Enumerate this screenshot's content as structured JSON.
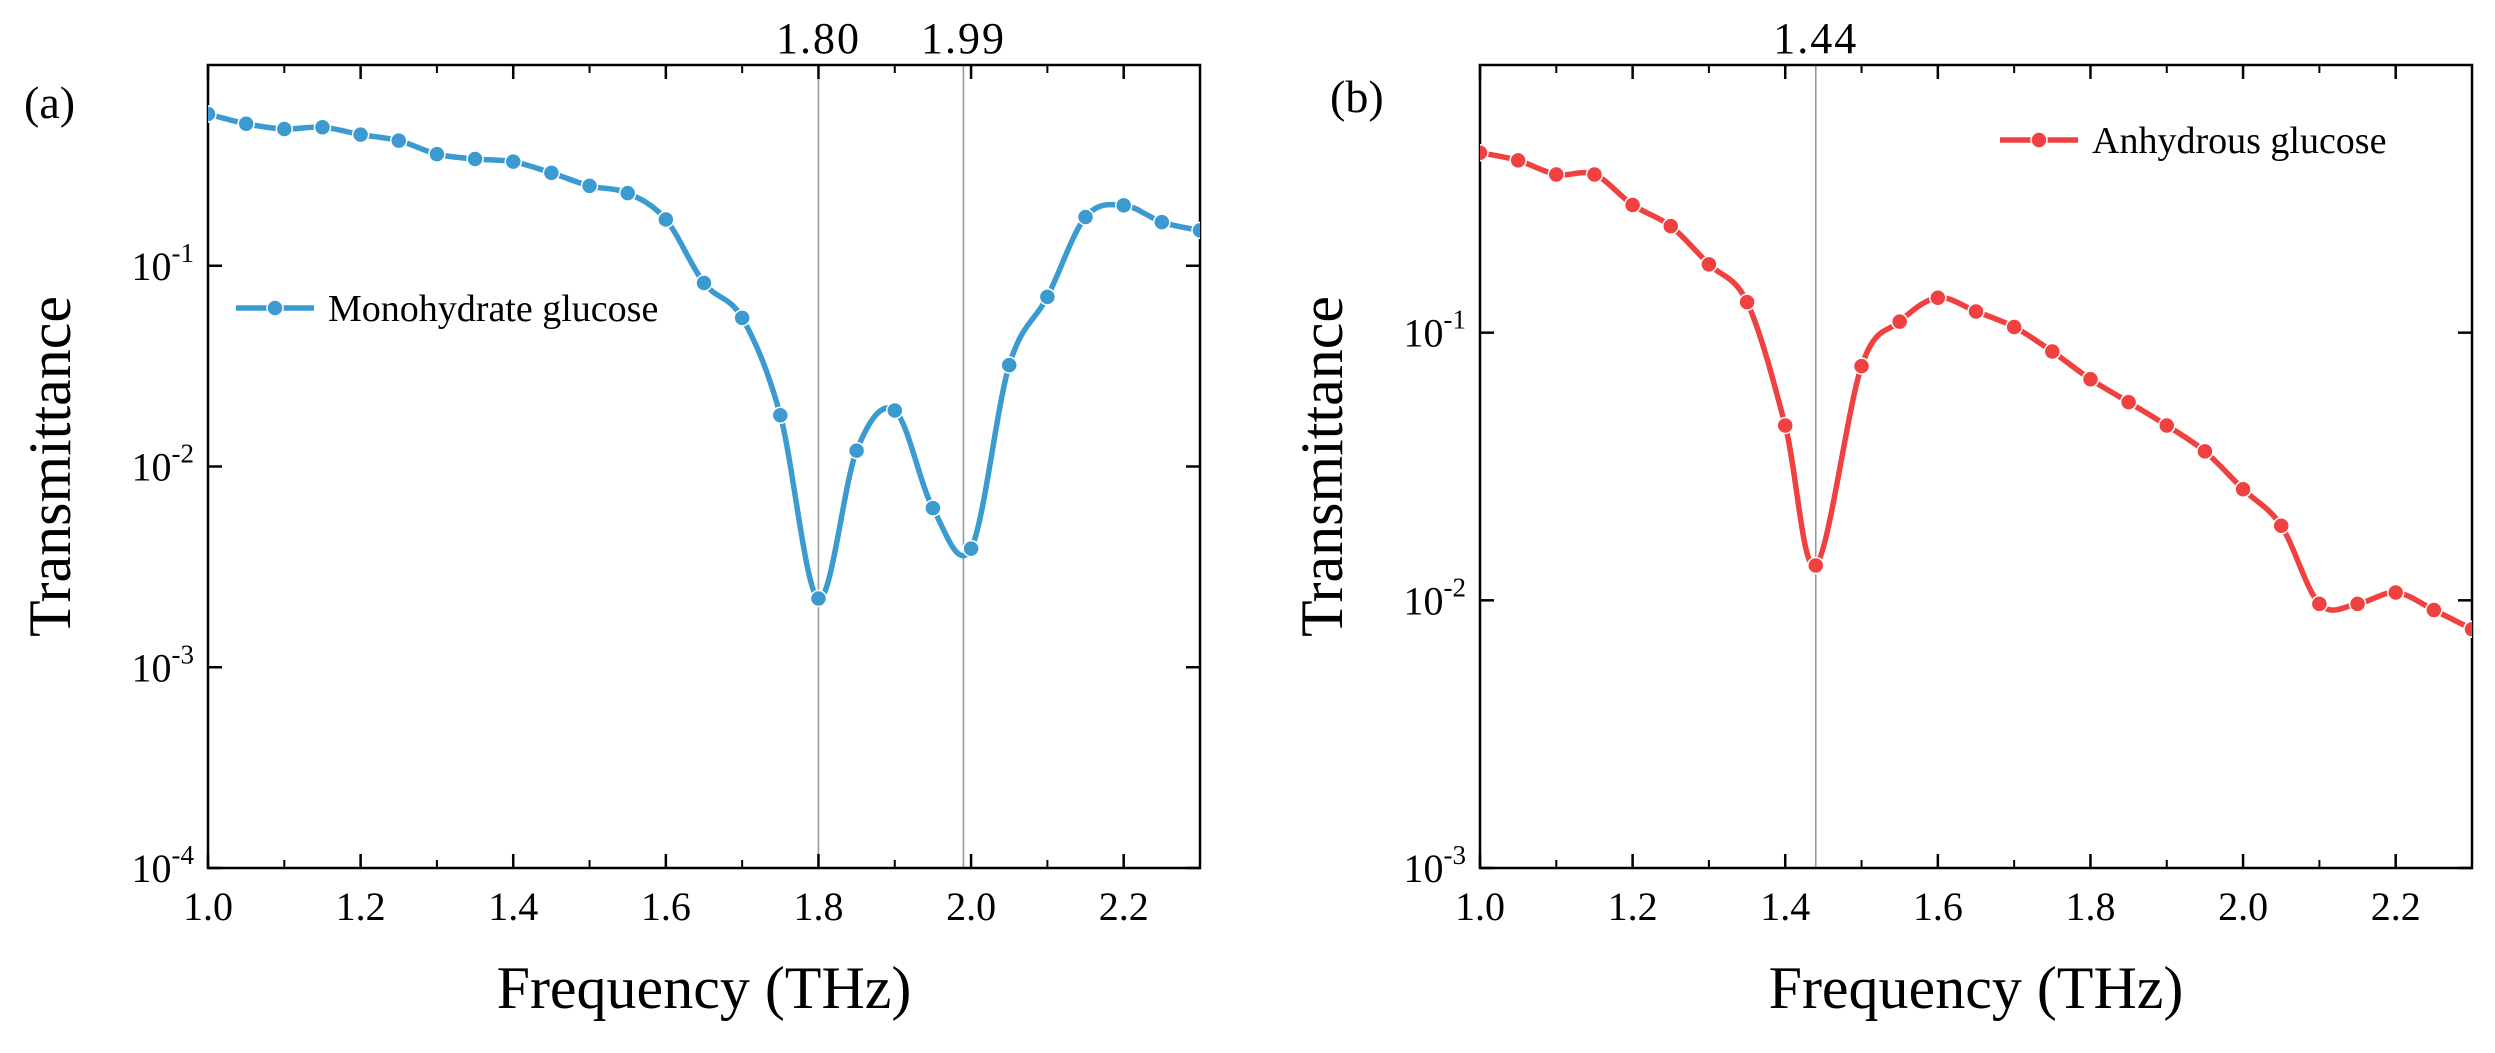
{
  "chart_data": [
    {
      "type": "line",
      "panel_label": "(a)",
      "xlabel": "Frequency (THz)",
      "ylabel": "Transmittance",
      "xlim": [
        1.0,
        2.3
      ],
      "ylim": [
        0.0001,
        1
      ],
      "yscale": "log",
      "x_ticks": [
        "1.0",
        "1.2",
        "1.4",
        "1.6",
        "1.8",
        "2.0",
        "2.2"
      ],
      "y_ticks": [
        {
          "base": "10",
          "exp": "-4",
          "value": 0.0001
        },
        {
          "base": "10",
          "exp": "-3",
          "value": 0.001
        },
        {
          "base": "10",
          "exp": "-2",
          "value": 0.01
        },
        {
          "base": "10",
          "exp": "-1",
          "value": 0.1
        }
      ],
      "reference_lines": [
        {
          "x": 1.8,
          "label": "1.80"
        },
        {
          "x": 1.99,
          "label": "1.99"
        }
      ],
      "legend_position": "middle-left",
      "series": [
        {
          "name": "Monohydrate glucose",
          "color": "#3b9bd1",
          "x": [
            1.0,
            1.05,
            1.1,
            1.15,
            1.2,
            1.25,
            1.3,
            1.35,
            1.4,
            1.45,
            1.5,
            1.55,
            1.6,
            1.65,
            1.7,
            1.75,
            1.8,
            1.85,
            1.9,
            1.95,
            2.0,
            2.05,
            2.1,
            2.15,
            2.2,
            2.25,
            2.3
          ],
          "y": [
            0.57,
            0.51,
            0.48,
            0.49,
            0.45,
            0.42,
            0.36,
            0.34,
            0.33,
            0.29,
            0.25,
            0.23,
            0.17,
            0.082,
            0.055,
            0.018,
            0.0022,
            0.012,
            0.019,
            0.0062,
            0.0039,
            0.032,
            0.07,
            0.175,
            0.2,
            0.165,
            0.15
          ]
        }
      ]
    },
    {
      "type": "line",
      "panel_label": "(b)",
      "xlabel": "Frequency (THz)",
      "ylabel": "Transmittance",
      "xlim": [
        1.0,
        2.3
      ],
      "ylim": [
        0.001,
        1
      ],
      "yscale": "log",
      "x_ticks": [
        "1.0",
        "1.2",
        "1.4",
        "1.6",
        "1.8",
        "2.0",
        "2.2"
      ],
      "y_ticks": [
        {
          "base": "10",
          "exp": "-3",
          "value": 0.001
        },
        {
          "base": "10",
          "exp": "-2",
          "value": 0.01
        },
        {
          "base": "10",
          "exp": "-1",
          "value": 0.1
        }
      ],
      "reference_lines": [
        {
          "x": 1.44,
          "label": "1.44"
        }
      ],
      "legend_position": "top-right",
      "series": [
        {
          "name": "Anhydrous glucose",
          "color": "#f04040",
          "x": [
            1.0,
            1.05,
            1.1,
            1.15,
            1.2,
            1.25,
            1.3,
            1.35,
            1.4,
            1.44,
            1.5,
            1.55,
            1.6,
            1.65,
            1.7,
            1.75,
            1.8,
            1.85,
            1.9,
            1.95,
            2.0,
            2.05,
            2.1,
            2.15,
            2.2,
            2.25,
            2.3
          ],
          "y": [
            0.47,
            0.44,
            0.39,
            0.39,
            0.3,
            0.25,
            0.18,
            0.13,
            0.045,
            0.0135,
            0.075,
            0.11,
            0.135,
            0.12,
            0.105,
            0.085,
            0.067,
            0.055,
            0.045,
            0.036,
            0.026,
            0.019,
            0.0097,
            0.0097,
            0.0107,
            0.0092,
            0.0078
          ]
        }
      ]
    }
  ]
}
